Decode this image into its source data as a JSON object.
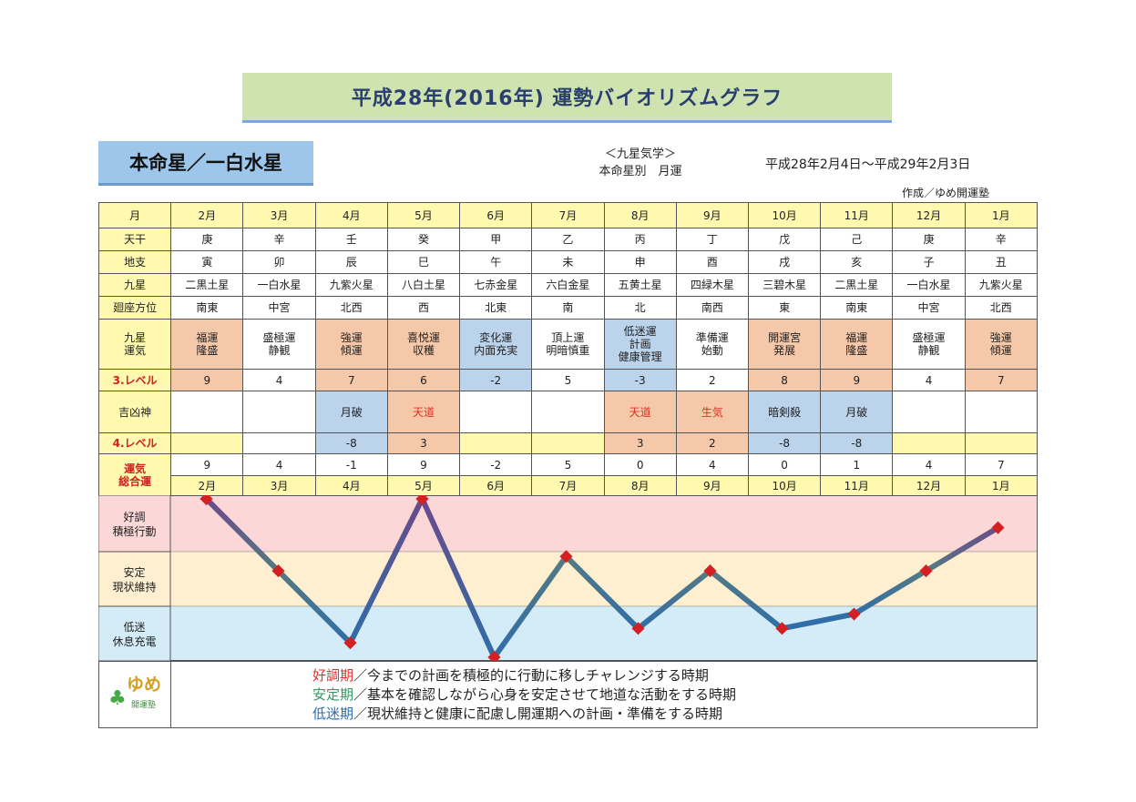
{
  "title": "平成28年(2016年) 運勢バイオリズムグラフ",
  "star": "本命星／一白水星",
  "subtitle1": "＜九星気学＞",
  "subtitle2": "本命星別　月運",
  "period": "平成28年2月4日～平成29年2月3日",
  "author": "作成／ゆめ開運塾",
  "row_labels": {
    "month": "月",
    "tenkan": "天干",
    "chishi": "地支",
    "kyusei": "九星",
    "zahoui": "廻座方位",
    "unki": "九星\n運気",
    "level3": "3.レベル",
    "kikkyo": "吉凶神",
    "level4": "4.レベル",
    "sogo": "運気\n総合運",
    "band_good": "好調\n積極行動",
    "band_stable": "安定\n現状維持",
    "band_low": "低迷\n休息充電"
  },
  "months": [
    "2月",
    "3月",
    "4月",
    "5月",
    "6月",
    "7月",
    "8月",
    "9月",
    "10月",
    "11月",
    "12月",
    "1月"
  ],
  "tenkan": [
    "庚",
    "辛",
    "壬",
    "癸",
    "甲",
    "乙",
    "丙",
    "丁",
    "戊",
    "己",
    "庚",
    "辛"
  ],
  "chishi": [
    "寅",
    "卯",
    "辰",
    "巳",
    "午",
    "未",
    "申",
    "酉",
    "戌",
    "亥",
    "子",
    "丑"
  ],
  "kyusei": [
    "二黒土星",
    "一白水星",
    "九紫火星",
    "八白土星",
    "七赤金星",
    "六白金星",
    "五黄土星",
    "四緑木星",
    "三碧木星",
    "二黒土星",
    "一白水星",
    "九紫火星"
  ],
  "zahoui": [
    "南東",
    "中宮",
    "北西",
    "西",
    "北東",
    "南",
    "北",
    "南西",
    "東",
    "南東",
    "中宮",
    "北西"
  ],
  "unki": [
    "福運\n隆盛",
    "盛極運\n静観",
    "強運\n傾運",
    "喜悦運\n収穫",
    "変化運\n内面充実",
    "頂上運\n明暗慎重",
    "低迷運\n計画\n健康管理",
    "準備運\n始動",
    "開運宮\n発展",
    "福運\n隆盛",
    "盛極運\n静観",
    "強運\n傾運"
  ],
  "unki_color": [
    "#f6c8aa",
    "#ffffff",
    "#f6c8aa",
    "#f6c8aa",
    "#bcd3ec",
    "#ffffff",
    "#bcd3ec",
    "#ffffff",
    "#f6c8aa",
    "#f6c8aa",
    "#ffffff",
    "#f6c8aa"
  ],
  "level3": [
    "9",
    "4",
    "7",
    "6",
    "-2",
    "5",
    "-3",
    "2",
    "8",
    "9",
    "4",
    "7"
  ],
  "kikkyo": [
    "",
    "",
    "月破",
    "天道",
    "",
    "",
    "天道",
    "生気",
    "暗剣殺",
    "月破",
    "",
    ""
  ],
  "kikkyo_color": [
    "#ffffff",
    "#ffffff",
    "#bcd3ec",
    "#f6c8aa",
    "#ffffff",
    "#ffffff",
    "#f6c8aa",
    "#f6c8aa",
    "#bcd3ec",
    "#bcd3ec",
    "#ffffff",
    "#ffffff"
  ],
  "kikkyo_text_color": [
    "#222222",
    "#222222",
    "#222222",
    "#e03020",
    "#222222",
    "#222222",
    "#e03020",
    "#e03020",
    "#222222",
    "#222222",
    "#222222",
    "#222222"
  ],
  "level4": [
    "",
    "",
    "-8",
    "3",
    "",
    "",
    "3",
    "2",
    "-8",
    "-8",
    "",
    ""
  ],
  "level4_color": [
    "#fff9b0",
    "#ffffff",
    "#bcd3ec",
    "#f6c8aa",
    "#fff9b0",
    "#fff9b0",
    "#f6c8aa",
    "#f6c8aa",
    "#bcd3ec",
    "#bcd3ec",
    "#fff9b0",
    "#fff9b0"
  ],
  "sogo": [
    "9",
    "4",
    "-1",
    "9",
    "-2",
    "5",
    "0",
    "4",
    "0",
    "1",
    "4",
    "7"
  ],
  "chart_data": {
    "type": "line",
    "categories": [
      "2月",
      "3月",
      "4月",
      "5月",
      "6月",
      "7月",
      "8月",
      "9月",
      "10月",
      "11月",
      "12月",
      "1月"
    ],
    "values": [
      9,
      4,
      -1,
      9,
      -2,
      5,
      0,
      4,
      0,
      1,
      4,
      7
    ],
    "ylim": [
      -2,
      9
    ],
    "bands": [
      {
        "label": "好調\n積極行動",
        "color": "#fcd7d8"
      },
      {
        "label": "安定\n現状維持",
        "color": "#fdefd0"
      },
      {
        "label": "低迷\n休息充電",
        "color": "#d3ecf8"
      }
    ],
    "colors": {
      "high": "#6b4a8a",
      "mid": "#557a82",
      "low": "#2f6ea8",
      "marker": "#d42020"
    }
  },
  "legend": {
    "line1_head": "好調期",
    "line1_rest": "／今までの計画を積極的に行動に移しチャレンジする時期",
    "line2_head": "安定期",
    "line2_rest": "／基本を確認しながら心身を安定させて地道な活動をする時期",
    "line3_head": "低迷期",
    "line3_rest": "／現状維持と健康に配慮し開運期への計画・準備をする時期"
  },
  "logo": {
    "text": "ゆめ",
    "sub": "開運塾",
    "icon": "clover-icon"
  }
}
